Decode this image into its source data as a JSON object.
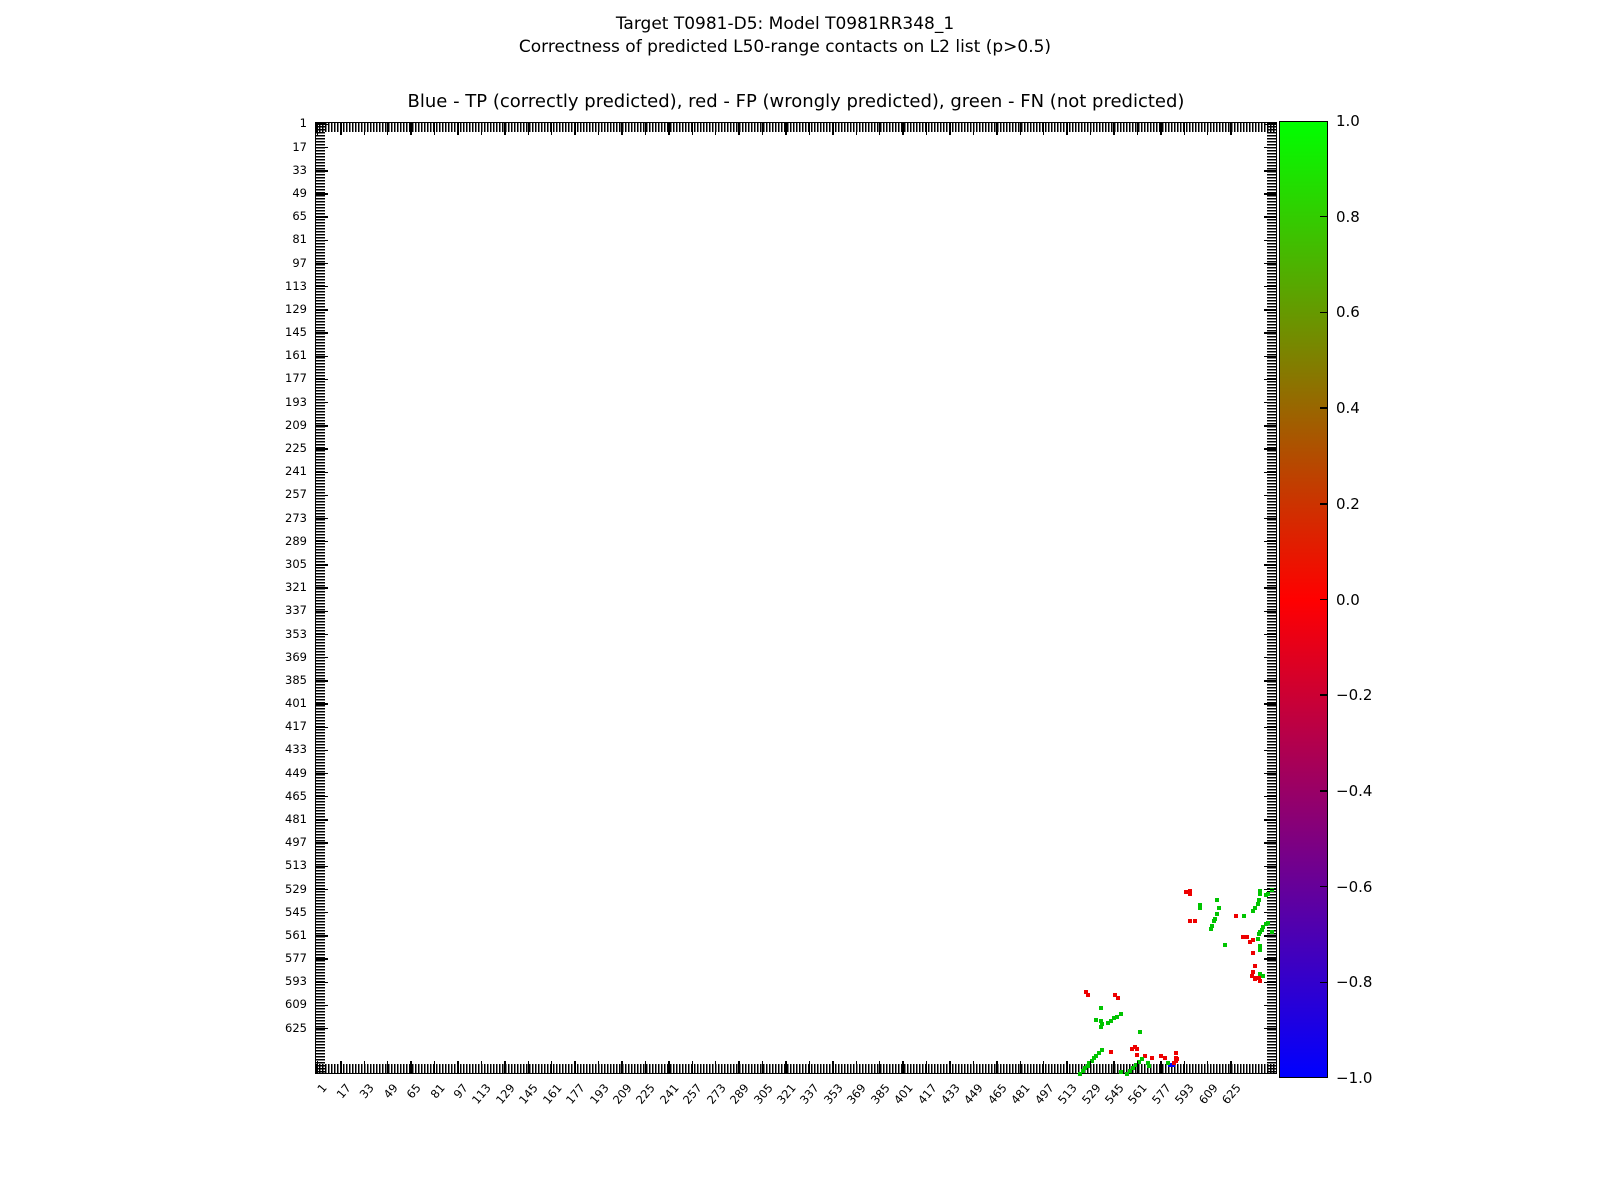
{
  "figure": {
    "suptitle_line1": "Target T0981-D5: Model T0981RR348_1",
    "suptitle_line2": "Correctness of predicted L50-range contacts on L2 list (p>0.5)"
  },
  "chart_data": {
    "type": "scatter",
    "title": "Blue - TP (correctly predicted), red - FP (wrongly predicted), green - FN (not predicted)",
    "xlabel": "",
    "ylabel": "",
    "axis_range": [
      0,
      657
    ],
    "y_axis_inverted": true,
    "grid": false,
    "legend_position": "none (legend encoded in title)",
    "tick_values": [
      1,
      17,
      33,
      49,
      65,
      81,
      97,
      113,
      129,
      145,
      161,
      177,
      193,
      209,
      225,
      241,
      257,
      273,
      289,
      305,
      321,
      337,
      353,
      369,
      385,
      401,
      417,
      433,
      449,
      465,
      481,
      497,
      513,
      529,
      545,
      561,
      577,
      593,
      609,
      625
    ],
    "series": [
      {
        "name": "TP (correctly predicted)",
        "color": "#0000ff",
        "points": [
          [
            583,
            650
          ],
          [
            585,
            650
          ]
        ]
      },
      {
        "name": "FP (wrongly predicted)",
        "color": "#ee0000",
        "points": [
          [
            594,
            531
          ],
          [
            597,
            530
          ],
          [
            597,
            532
          ],
          [
            597,
            551
          ],
          [
            600,
            551
          ],
          [
            628,
            547
          ],
          [
            633,
            562
          ],
          [
            636,
            562
          ],
          [
            638,
            565
          ],
          [
            640,
            564
          ],
          [
            640,
            573
          ],
          [
            641,
            582
          ],
          [
            640,
            586
          ],
          [
            639,
            589
          ],
          [
            641,
            591
          ],
          [
            644,
            590
          ],
          [
            645,
            592
          ],
          [
            642,
            590
          ],
          [
            526,
            600
          ],
          [
            527,
            602
          ],
          [
            546,
            602
          ],
          [
            548,
            604
          ],
          [
            543,
            641
          ],
          [
            557,
            639
          ],
          [
            559,
            638
          ],
          [
            561,
            639
          ],
          [
            561,
            643
          ],
          [
            566,
            644
          ],
          [
            571,
            645
          ],
          [
            577,
            644
          ],
          [
            580,
            645
          ],
          [
            587,
            642
          ],
          [
            587,
            645
          ],
          [
            587,
            647
          ],
          [
            586,
            649
          ],
          [
            588,
            646
          ]
        ]
      },
      {
        "name": "FN (not predicted)",
        "color": "#00c400",
        "points": [
          [
            604,
            540
          ],
          [
            604,
            542
          ],
          [
            615,
            536
          ],
          [
            611,
            556
          ],
          [
            612,
            554
          ],
          [
            613,
            551
          ],
          [
            614,
            549
          ],
          [
            615,
            546
          ],
          [
            617,
            542
          ],
          [
            621,
            567
          ],
          [
            634,
            547
          ],
          [
            640,
            544
          ],
          [
            641,
            542
          ],
          [
            643,
            539
          ],
          [
            644,
            536
          ],
          [
            645,
            532
          ],
          [
            645,
            530
          ],
          [
            649,
            533
          ],
          [
            650,
            532
          ],
          [
            653,
            529
          ],
          [
            643,
            563
          ],
          [
            644,
            560
          ],
          [
            645,
            558
          ],
          [
            646,
            557
          ],
          [
            647,
            555
          ],
          [
            649,
            553
          ],
          [
            650,
            552
          ],
          [
            653,
            558
          ],
          [
            645,
            568
          ],
          [
            645,
            571
          ],
          [
            647,
            589
          ],
          [
            645,
            587
          ],
          [
            536,
            611
          ],
          [
            533,
            619
          ],
          [
            536,
            620
          ],
          [
            537,
            622
          ],
          [
            536,
            624
          ],
          [
            541,
            621
          ],
          [
            543,
            620
          ],
          [
            545,
            618
          ],
          [
            547,
            617
          ],
          [
            550,
            615
          ],
          [
            563,
            627
          ],
          [
            522,
            656
          ],
          [
            524,
            654
          ],
          [
            525,
            652
          ],
          [
            527,
            651
          ],
          [
            528,
            649
          ],
          [
            530,
            647
          ],
          [
            531,
            645
          ],
          [
            533,
            644
          ],
          [
            535,
            642
          ],
          [
            537,
            640
          ],
          [
            550,
            655
          ],
          [
            554,
            656
          ],
          [
            556,
            654
          ],
          [
            558,
            652
          ],
          [
            560,
            650
          ],
          [
            562,
            648
          ],
          [
            564,
            646
          ],
          [
            569,
            651
          ],
          [
            568,
            649
          ],
          [
            582,
            649
          ]
        ]
      }
    ],
    "colorbar": {
      "min": -1.0,
      "max": 1.0,
      "tick_labels": [
        "1.0",
        "0.8",
        "0.6",
        "0.4",
        "0.2",
        "0.0",
        "−0.2",
        "−0.4",
        "−0.6",
        "−0.8",
        "−1.0"
      ],
      "color_top": "#00ff00",
      "color_middle": "#ff0000",
      "color_bottom": "#0000ff"
    }
  }
}
